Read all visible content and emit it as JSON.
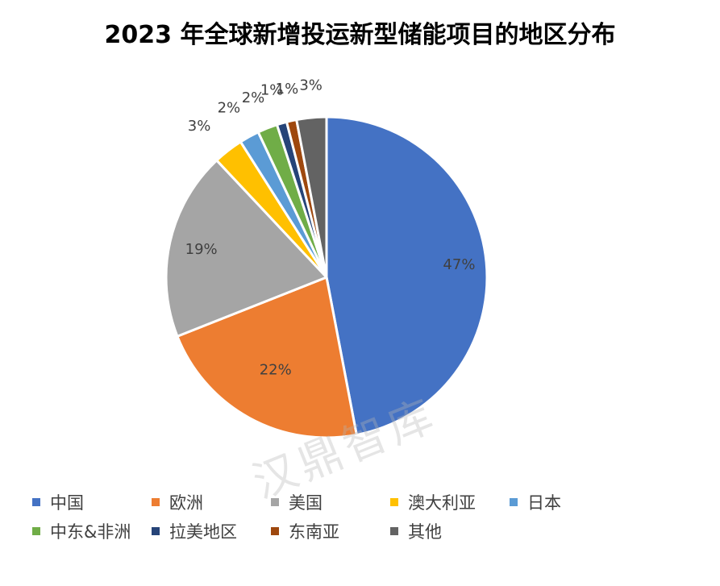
{
  "chart_data": {
    "type": "pie",
    "title": "2023 年全球新增投运新型储能项目的地区分布",
    "unit": "%",
    "legend_position": "bottom",
    "slices": [
      {
        "label": "中国",
        "value": 47,
        "display": "47%",
        "color": "#4472C4"
      },
      {
        "label": "欧洲",
        "value": 22,
        "display": "22%",
        "color": "#ED7D31"
      },
      {
        "label": "美国",
        "value": 19,
        "display": "19%",
        "color": "#A5A5A5"
      },
      {
        "label": "澳大利亚",
        "value": 3,
        "display": "3%",
        "color": "#FFC000"
      },
      {
        "label": "日本",
        "value": 2,
        "display": "2%",
        "color": "#5B9BD5"
      },
      {
        "label": "中东&非洲",
        "value": 2,
        "display": "2%",
        "color": "#70AD47"
      },
      {
        "label": "拉美地区",
        "value": 1,
        "display": "1%",
        "color": "#264478"
      },
      {
        "label": "东南亚",
        "value": 1,
        "display": "1%",
        "color": "#9E480E"
      },
      {
        "label": "其他",
        "value": 3,
        "display": "3%",
        "color": "#636363"
      }
    ]
  },
  "watermark": "汉鼎智库"
}
